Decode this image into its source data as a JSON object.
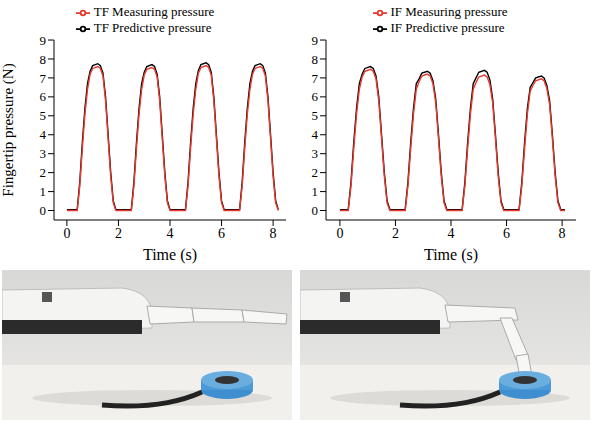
{
  "chart_data": [
    {
      "type": "line",
      "x_label": "Time (s)",
      "y_label": "Fingertip pressure (N)",
      "xlim": [
        -0.5,
        8.5
      ],
      "xticks": [
        0,
        2,
        4,
        6,
        8
      ],
      "ylim": [
        -0.5,
        9
      ],
      "yticks": [
        0,
        1,
        2,
        3,
        4,
        5,
        6,
        7,
        8,
        9
      ],
      "legend": "top",
      "x": [
        0,
        0.2,
        0.4,
        0.5,
        0.6,
        0.7,
        0.8,
        0.9,
        1.0,
        1.2,
        1.3,
        1.4,
        1.5,
        1.6,
        1.7,
        1.8,
        1.9,
        2.2,
        2.5,
        2.6,
        2.7,
        2.8,
        2.9,
        3.0,
        3.1,
        3.3,
        3.4,
        3.5,
        3.6,
        3.7,
        3.8,
        3.9,
        4.0,
        4.3,
        4.6,
        4.7,
        4.8,
        4.9,
        5.0,
        5.1,
        5.2,
        5.4,
        5.5,
        5.6,
        5.7,
        5.8,
        5.9,
        6.0,
        6.1,
        6.4,
        6.7,
        6.8,
        6.9,
        7.0,
        7.1,
        7.2,
        7.3,
        7.5,
        7.6,
        7.7,
        7.8,
        7.9,
        8.0,
        8.1,
        8.2
      ],
      "series": [
        {
          "name": "TF Predictive pressure",
          "color": "#000000",
          "values": [
            0.05,
            0.05,
            0.05,
            1.5,
            3.6,
            5.4,
            6.7,
            7.35,
            7.65,
            7.75,
            7.65,
            7.25,
            6.0,
            4.0,
            2.0,
            0.5,
            0.05,
            0.05,
            0.05,
            1.5,
            3.6,
            5.4,
            6.7,
            7.3,
            7.6,
            7.7,
            7.6,
            7.2,
            6.0,
            4.0,
            2.0,
            0.5,
            0.05,
            0.05,
            0.05,
            1.5,
            3.6,
            5.4,
            6.7,
            7.4,
            7.7,
            7.8,
            7.7,
            7.3,
            6.0,
            4.0,
            2.0,
            0.5,
            0.05,
            0.05,
            0.05,
            1.5,
            3.6,
            5.4,
            6.7,
            7.35,
            7.65,
            7.75,
            7.65,
            7.25,
            6.0,
            4.0,
            2.0,
            0.5,
            0.05
          ]
        },
        {
          "name": "TF Measuring pressure",
          "color": "#e8382c",
          "values": [
            0,
            0,
            0,
            1.3,
            3.3,
            5.1,
            6.4,
            7.2,
            7.5,
            7.6,
            7.5,
            7.1,
            5.8,
            3.8,
            1.8,
            0.4,
            0,
            0,
            0,
            1.3,
            3.3,
            5.1,
            6.4,
            7.15,
            7.45,
            7.55,
            7.45,
            7.05,
            5.8,
            3.8,
            1.8,
            0.4,
            0,
            0,
            0,
            1.3,
            3.3,
            5.1,
            6.4,
            7.25,
            7.55,
            7.65,
            7.55,
            7.15,
            5.8,
            3.8,
            1.8,
            0.4,
            0,
            0,
            0,
            1.3,
            3.3,
            5.1,
            6.4,
            7.2,
            7.5,
            7.6,
            7.5,
            7.1,
            5.8,
            3.8,
            1.8,
            0.4,
            0
          ]
        }
      ]
    },
    {
      "type": "line",
      "x_label": "Time (s)",
      "xlim": [
        -0.5,
        8.5
      ],
      "xticks": [
        0,
        2,
        4,
        6,
        8
      ],
      "ylim": [
        -0.5,
        9
      ],
      "yticks": [
        0,
        1,
        2,
        3,
        4,
        5,
        6,
        7,
        8,
        9
      ],
      "legend": "top",
      "x": [
        0,
        0.15,
        0.3,
        0.4,
        0.5,
        0.6,
        0.7,
        0.8,
        0.9,
        1.1,
        1.2,
        1.3,
        1.4,
        1.5,
        1.6,
        1.7,
        1.8,
        2.05,
        2.35,
        2.45,
        2.55,
        2.65,
        2.75,
        2.85,
        2.95,
        3.15,
        3.25,
        3.35,
        3.45,
        3.55,
        3.65,
        3.75,
        3.85,
        4.1,
        4.4,
        4.5,
        4.6,
        4.7,
        4.8,
        4.9,
        5.0,
        5.2,
        5.3,
        5.4,
        5.5,
        5.6,
        5.7,
        5.8,
        5.9,
        6.15,
        6.45,
        6.55,
        6.65,
        6.75,
        6.85,
        6.95,
        7.05,
        7.25,
        7.35,
        7.45,
        7.55,
        7.65,
        7.75,
        7.85,
        7.95,
        8.1
      ],
      "series": [
        {
          "name": "IF Predictive pressure",
          "color": "#000000",
          "values": [
            0.05,
            0.05,
            0.05,
            1.5,
            3.6,
            5.4,
            6.7,
            7.2,
            7.5,
            7.6,
            7.5,
            7.1,
            6.0,
            4.0,
            2.0,
            0.5,
            0.05,
            0.05,
            0.05,
            1.5,
            3.6,
            5.4,
            6.7,
            6.95,
            7.25,
            7.35,
            7.25,
            6.85,
            5.9,
            4.0,
            2.0,
            0.5,
            0.05,
            0.05,
            0.05,
            1.5,
            3.6,
            5.4,
            6.7,
            7.0,
            7.3,
            7.4,
            7.3,
            6.9,
            5.9,
            4.0,
            2.0,
            0.5,
            0.05,
            0.05,
            0.05,
            1.5,
            3.6,
            5.4,
            6.5,
            6.75,
            7.0,
            7.1,
            7.0,
            6.6,
            5.8,
            4.0,
            2.0,
            0.5,
            0.05,
            0.05
          ]
        },
        {
          "name": "IF Measuring pressure",
          "color": "#e8382c",
          "values": [
            0,
            0,
            0,
            1.3,
            3.3,
            5.1,
            6.4,
            7.05,
            7.35,
            7.45,
            7.35,
            6.95,
            5.8,
            3.8,
            1.8,
            0.4,
            0,
            0,
            0,
            1.3,
            3.3,
            5.1,
            6.4,
            6.8,
            7.1,
            7.2,
            7.1,
            6.7,
            5.7,
            3.8,
            1.8,
            0.4,
            0,
            0,
            0,
            1.3,
            3.3,
            5.1,
            6.4,
            6.75,
            7.05,
            7.15,
            7.05,
            6.65,
            5.7,
            3.8,
            1.8,
            0.4,
            0,
            0,
            0,
            1.3,
            3.3,
            5.1,
            6.3,
            6.6,
            6.85,
            6.95,
            6.85,
            6.45,
            5.6,
            3.8,
            1.8,
            0.4,
            0,
            0
          ]
        }
      ]
    }
  ]
}
